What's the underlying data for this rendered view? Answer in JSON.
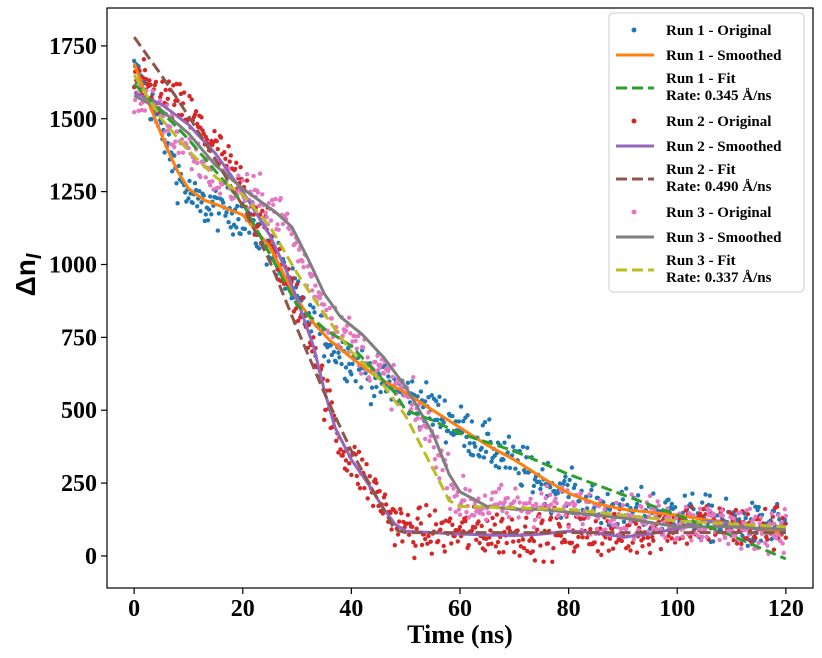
{
  "chart_data": {
    "type": "line",
    "title": "",
    "xlabel": "Time (ns)",
    "ylabel": "Δn",
    "ylabel_subscript": "l",
    "xlim": [
      -5,
      125
    ],
    "ylim": [
      -110,
      1880
    ],
    "x_ticks": [
      0,
      20,
      40,
      60,
      80,
      100,
      120
    ],
    "y_ticks": [
      0,
      250,
      500,
      750,
      1000,
      1250,
      1500,
      1750
    ],
    "grid": false,
    "legend_position": "top-right",
    "series": [
      {
        "name": "Run 1 - Original",
        "kind": "scatter",
        "color": "#1f77b4",
        "anchors": [
          [
            0,
            1660
          ],
          [
            3,
            1560
          ],
          [
            6,
            1420
          ],
          [
            8,
            1310
          ],
          [
            10,
            1240
          ],
          [
            12,
            1200
          ],
          [
            15,
            1200
          ],
          [
            20,
            1170
          ],
          [
            25,
            1060
          ],
          [
            28,
            950
          ],
          [
            30,
            880
          ],
          [
            33,
            790
          ],
          [
            36,
            730
          ],
          [
            40,
            670
          ],
          [
            45,
            600
          ],
          [
            50,
            560
          ],
          [
            55,
            500
          ],
          [
            60,
            440
          ],
          [
            65,
            380
          ],
          [
            70,
            320
          ],
          [
            75,
            260
          ],
          [
            80,
            210
          ],
          [
            85,
            170
          ],
          [
            90,
            150
          ],
          [
            95,
            150
          ],
          [
            100,
            150
          ],
          [
            105,
            130
          ],
          [
            110,
            110
          ],
          [
            115,
            100
          ],
          [
            120,
            110
          ]
        ],
        "noise": 38
      },
      {
        "name": "Run 1 - Smoothed",
        "kind": "line",
        "color": "#ff7f0e",
        "anchors": [
          [
            0,
            1690
          ],
          [
            3,
            1540
          ],
          [
            6,
            1400
          ],
          [
            8,
            1320
          ],
          [
            10,
            1260
          ],
          [
            13,
            1220
          ],
          [
            16,
            1200
          ],
          [
            20,
            1170
          ],
          [
            25,
            1060
          ],
          [
            28,
            950
          ],
          [
            30,
            880
          ],
          [
            33,
            800
          ],
          [
            36,
            740
          ],
          [
            40,
            680
          ],
          [
            45,
            610
          ],
          [
            50,
            560
          ],
          [
            55,
            500
          ],
          [
            60,
            440
          ],
          [
            65,
            380
          ],
          [
            70,
            330
          ],
          [
            75,
            270
          ],
          [
            80,
            215
          ],
          [
            85,
            180
          ],
          [
            90,
            160
          ],
          [
            95,
            150
          ],
          [
            100,
            140
          ],
          [
            105,
            125
          ],
          [
            110,
            110
          ],
          [
            115,
            90
          ],
          [
            120,
            80
          ]
        ]
      },
      {
        "name": "Run 1 - Fit",
        "label_lines": [
          "Run 1 - Fit",
          "Rate: 0.345 Å/ns"
        ],
        "kind": "dashed",
        "color": "#2ca02c",
        "anchors": [
          [
            0,
            1620
          ],
          [
            10,
            1430
          ],
          [
            20,
            1210
          ],
          [
            30,
            860
          ],
          [
            35,
            780
          ],
          [
            40,
            720
          ],
          [
            48,
            560
          ],
          [
            50,
            500
          ],
          [
            55,
            465
          ],
          [
            60,
            420
          ],
          [
            70,
            360
          ],
          [
            80,
            280
          ],
          [
            90,
            210
          ],
          [
            100,
            140
          ],
          [
            110,
            70
          ],
          [
            120,
            -10
          ]
        ]
      },
      {
        "name": "Run 2 - Original",
        "kind": "scatter",
        "color": "#d62728",
        "anchors": [
          [
            0,
            1620
          ],
          [
            5,
            1580
          ],
          [
            10,
            1520
          ],
          [
            15,
            1400
          ],
          [
            20,
            1260
          ],
          [
            25,
            1080
          ],
          [
            28,
            950
          ],
          [
            30,
            860
          ],
          [
            33,
            740
          ],
          [
            35,
            560
          ],
          [
            38,
            380
          ],
          [
            42,
            280
          ],
          [
            45,
            200
          ],
          [
            48,
            120
          ],
          [
            50,
            90
          ],
          [
            55,
            80
          ],
          [
            60,
            80
          ],
          [
            65,
            80
          ],
          [
            70,
            80
          ],
          [
            75,
            80
          ],
          [
            80,
            80
          ],
          [
            85,
            80
          ],
          [
            90,
            70
          ],
          [
            95,
            90
          ],
          [
            100,
            110
          ],
          [
            105,
            110
          ],
          [
            110,
            100
          ],
          [
            115,
            90
          ],
          [
            120,
            110
          ]
        ],
        "noise": 40
      },
      {
        "name": "Run 2 - Smoothed",
        "kind": "line",
        "color": "#9467bd",
        "anchors": [
          [
            0,
            1590
          ],
          [
            5,
            1550
          ],
          [
            10,
            1480
          ],
          [
            15,
            1380
          ],
          [
            20,
            1250
          ],
          [
            25,
            1100
          ],
          [
            28,
            980
          ],
          [
            30,
            880
          ],
          [
            33,
            720
          ],
          [
            35,
            570
          ],
          [
            37,
            440
          ],
          [
            40,
            330
          ],
          [
            43,
            250
          ],
          [
            46,
            160
          ],
          [
            48,
            110
          ],
          [
            50,
            85
          ],
          [
            55,
            80
          ],
          [
            60,
            75
          ],
          [
            65,
            72
          ],
          [
            70,
            70
          ],
          [
            75,
            75
          ],
          [
            80,
            85
          ],
          [
            85,
            80
          ],
          [
            90,
            65
          ],
          [
            95,
            75
          ],
          [
            100,
            95
          ],
          [
            105,
            120
          ],
          [
            110,
            110
          ],
          [
            115,
            90
          ],
          [
            120,
            100
          ]
        ]
      },
      {
        "name": "Run 2 - Fit",
        "label_lines": [
          "Run 2 - Fit",
          "Rate: 0.490 Å/ns"
        ],
        "kind": "dashed",
        "color": "#8c564b",
        "anchors": [
          [
            0,
            1780
          ],
          [
            5,
            1650
          ],
          [
            10,
            1510
          ],
          [
            15,
            1360
          ],
          [
            20,
            1200
          ],
          [
            25,
            1010
          ],
          [
            30,
            780
          ],
          [
            35,
            560
          ],
          [
            40,
            360
          ],
          [
            45,
            190
          ],
          [
            48,
            90
          ],
          [
            50,
            80
          ],
          [
            60,
            80
          ],
          [
            80,
            80
          ],
          [
            100,
            80
          ],
          [
            120,
            80
          ]
        ]
      },
      {
        "name": "Run 3 - Original",
        "kind": "scatter",
        "color": "#e377c2",
        "anchors": [
          [
            0,
            1580
          ],
          [
            5,
            1500
          ],
          [
            10,
            1390
          ],
          [
            15,
            1300
          ],
          [
            20,
            1250
          ],
          [
            25,
            1200
          ],
          [
            28,
            1150
          ],
          [
            30,
            1060
          ],
          [
            33,
            940
          ],
          [
            36,
            820
          ],
          [
            40,
            740
          ],
          [
            45,
            640
          ],
          [
            50,
            550
          ],
          [
            55,
            400
          ],
          [
            58,
            260
          ],
          [
            60,
            190
          ],
          [
            65,
            170
          ],
          [
            70,
            170
          ],
          [
            75,
            180
          ],
          [
            80,
            160
          ],
          [
            85,
            150
          ],
          [
            90,
            140
          ],
          [
            95,
            130
          ],
          [
            100,
            120
          ],
          [
            105,
            110
          ],
          [
            110,
            100
          ],
          [
            115,
            90
          ],
          [
            120,
            100
          ]
        ],
        "noise": 36
      },
      {
        "name": "Run 3 - Smoothed",
        "kind": "line",
        "color": "#7f7f7f",
        "anchors": [
          [
            0,
            1580
          ],
          [
            5,
            1530
          ],
          [
            10,
            1450
          ],
          [
            15,
            1340
          ],
          [
            20,
            1260
          ],
          [
            23,
            1220
          ],
          [
            26,
            1180
          ],
          [
            29,
            1130
          ],
          [
            32,
            1020
          ],
          [
            35,
            900
          ],
          [
            38,
            820
          ],
          [
            42,
            760
          ],
          [
            46,
            680
          ],
          [
            50,
            580
          ],
          [
            55,
            420
          ],
          [
            58,
            280
          ],
          [
            60,
            220
          ],
          [
            65,
            170
          ],
          [
            70,
            160
          ],
          [
            75,
            160
          ],
          [
            80,
            150
          ],
          [
            85,
            140
          ],
          [
            90,
            130
          ],
          [
            95,
            115
          ],
          [
            100,
            100
          ],
          [
            105,
            100
          ],
          [
            110,
            100
          ],
          [
            115,
            95
          ],
          [
            120,
            90
          ]
        ]
      },
      {
        "name": "Run 3 - Fit",
        "label_lines": [
          "Run 3 - Fit",
          "Rate: 0.337 Å/ns"
        ],
        "kind": "dashed",
        "color": "#bcbd22",
        "anchors": [
          [
            0,
            1650
          ],
          [
            5,
            1500
          ],
          [
            10,
            1390
          ],
          [
            15,
            1300
          ],
          [
            20,
            1240
          ],
          [
            25,
            1130
          ],
          [
            30,
            970
          ],
          [
            35,
            830
          ],
          [
            40,
            700
          ],
          [
            45,
            610
          ],
          [
            50,
            480
          ],
          [
            55,
            300
          ],
          [
            58,
            190
          ],
          [
            60,
            170
          ],
          [
            70,
            165
          ],
          [
            80,
            160
          ],
          [
            90,
            140
          ],
          [
            100,
            120
          ],
          [
            110,
            110
          ],
          [
            120,
            100
          ]
        ]
      }
    ]
  }
}
